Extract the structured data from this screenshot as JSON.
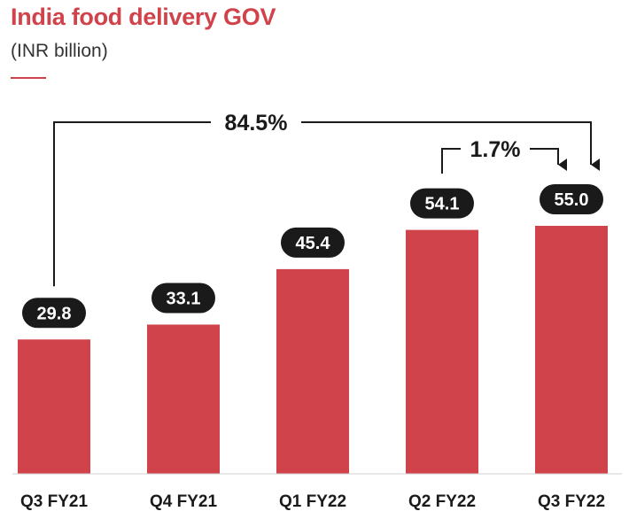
{
  "colors": {
    "accent": "#d1434b",
    "bar": "#d1434b",
    "label_bg": "#1a1a1a",
    "text": "#1a1a1a"
  },
  "chart_data": {
    "type": "bar",
    "title": "India food delivery GOV",
    "subtitle": "(INR billion)",
    "categories": [
      "Q3 FY21",
      "Q4 FY21",
      "Q1 FY22",
      "Q2 FY22",
      "Q3 FY22"
    ],
    "values": [
      29.8,
      33.1,
      45.4,
      54.1,
      55.0
    ],
    "value_labels": [
      "29.8",
      "33.1",
      "45.4",
      "54.1",
      "55.0"
    ],
    "ylim": [
      0,
      55.0
    ],
    "grid": false,
    "annotations": [
      {
        "text": "84.5%",
        "from": "Q3 FY21",
        "to": "Q3 FY22"
      },
      {
        "text": "1.7%",
        "from": "Q2 FY22",
        "to": "Q3 FY22"
      }
    ]
  }
}
